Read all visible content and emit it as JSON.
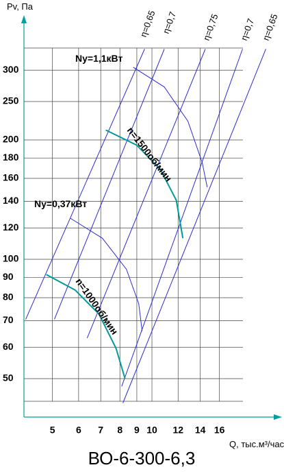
{
  "chart_data": {
    "type": "line",
    "title": "ВО-6-300-6,3",
    "x_label": "Q, тыс.м³/час",
    "y_label": "Pv, Па",
    "log_x": true,
    "log_y": true,
    "grid": true,
    "xlim": [
      4.1,
      24.5
    ],
    "ylim": [
      40,
      400
    ],
    "xticks": [
      5,
      6,
      7,
      8,
      9,
      10,
      12,
      14,
      16
    ],
    "yticks": [
      50,
      60,
      70,
      80,
      90,
      100,
      120,
      140,
      160,
      180,
      200,
      250,
      300
    ],
    "series": [
      {
        "name": "η=0,65",
        "color": "#2b2bd0",
        "x": [
          4.15,
          9.5
        ],
        "values": [
          70.5,
          339
        ]
      },
      {
        "name": "η=0,7",
        "color": "#2b2bd0",
        "x": [
          5.07,
          10.9
        ],
        "values": [
          70.6,
          339
        ]
      },
      {
        "name": "η=0,75",
        "color": "#2b2bd0",
        "x": [
          6.37,
          14.5
        ],
        "values": [
          63.3,
          339
        ]
      },
      {
        "name": "η=0,7",
        "color": "#2b2bd0",
        "x": [
          8.1,
          18.8
        ],
        "values": [
          47.8,
          339
        ]
      },
      {
        "name": "η=0,65",
        "color": "#2b2bd0",
        "x": [
          8.17,
          22.1
        ],
        "values": [
          43.4,
          339
        ]
      },
      {
        "name": "Ny=1,1кВт",
        "color": "#2b2bd0",
        "x": [
          8.78,
          10.9,
          12.85,
          14.2,
          14.7
        ],
        "values": [
          305,
          272,
          223,
          175,
          152
        ]
      },
      {
        "name": "Ny=0,37кВт",
        "color": "#2b2bd0",
        "x": [
          5.66,
          7.08,
          8.37,
          9.12,
          9.34
        ],
        "values": [
          127,
          113,
          94.4,
          77.3,
          65.9
        ]
      },
      {
        "name": "n=1500об/мин",
        "color": "#009a9a",
        "x": [
          7.25,
          8.99,
          10.6,
          11.85,
          12.4
        ],
        "values": [
          211.8,
          194,
          168.6,
          140.9,
          113
        ]
      },
      {
        "name": "n=1000об/мин",
        "color": "#009a9a",
        "x": [
          4.79,
          5.85,
          6.91,
          7.79,
          8.29
        ],
        "values": [
          91.5,
          83.7,
          72.8,
          59.6,
          50
        ]
      }
    ]
  }
}
